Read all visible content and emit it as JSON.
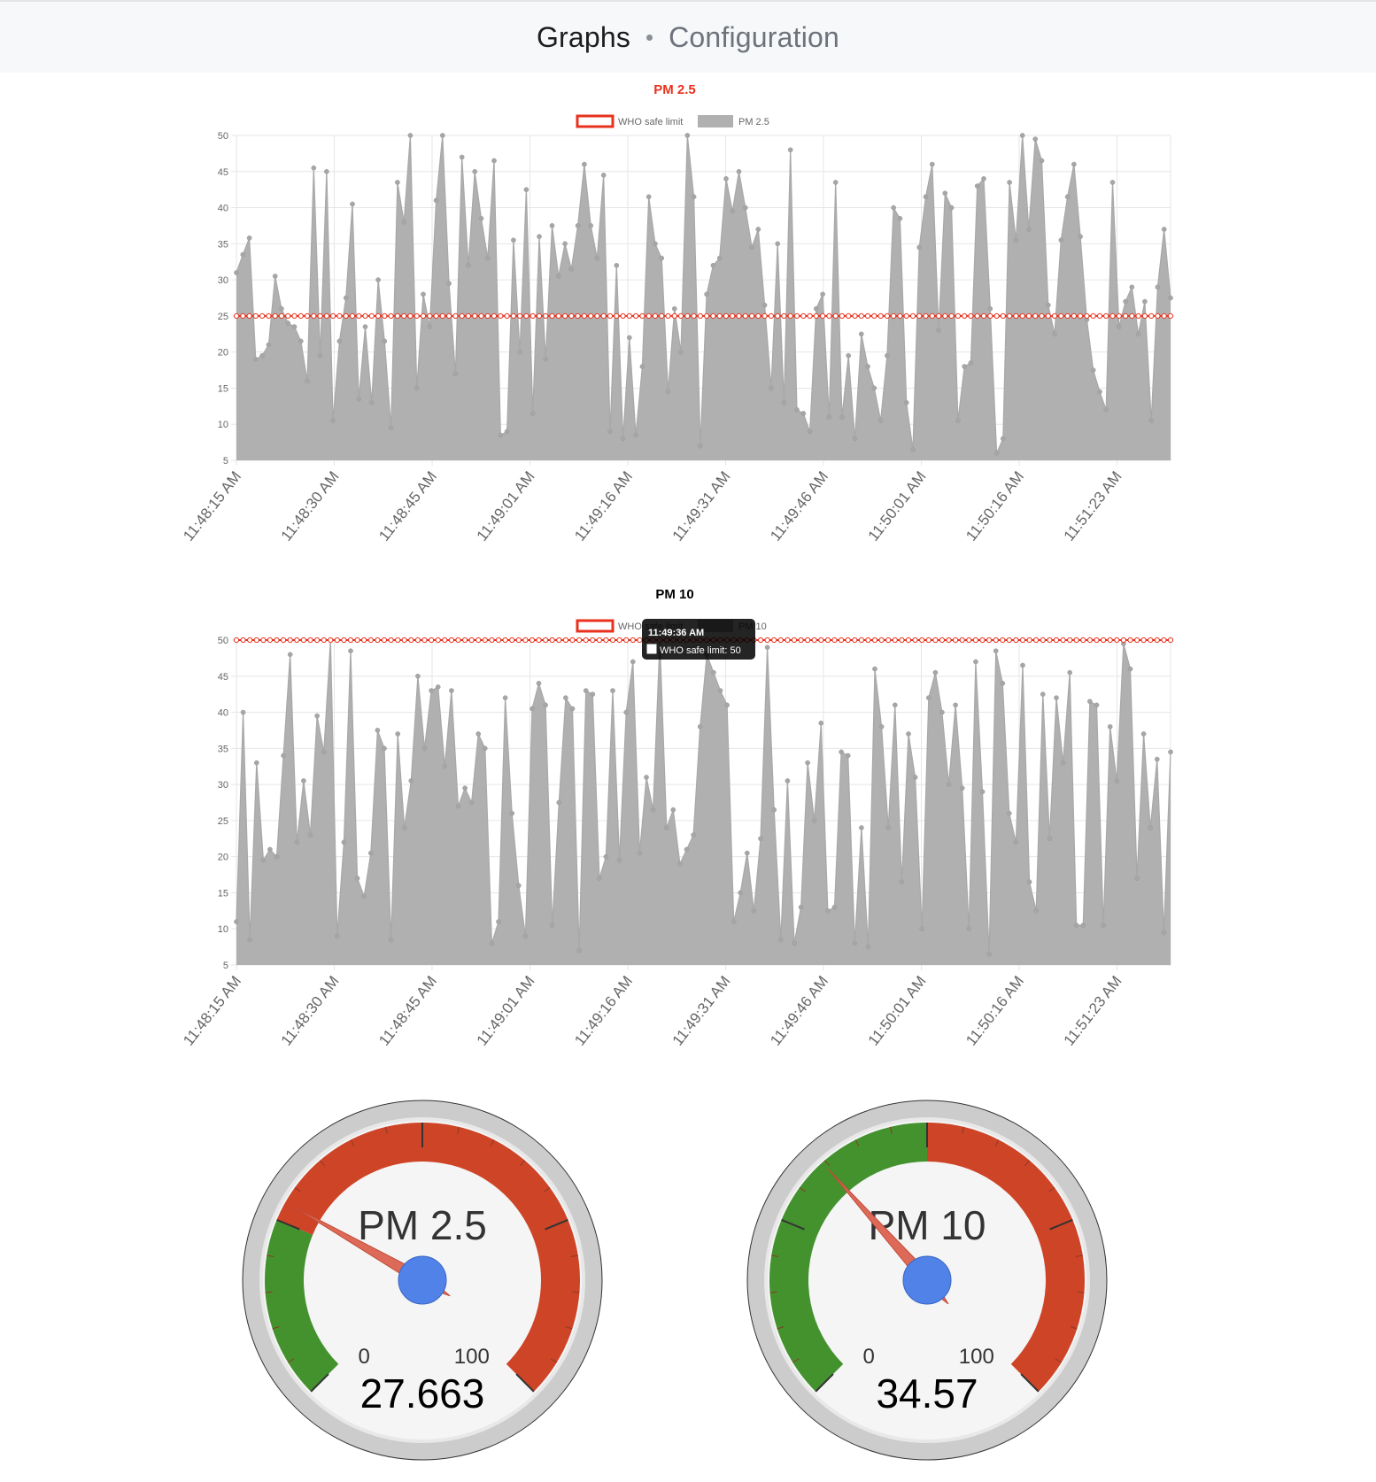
{
  "nav": {
    "graphs_label": "Graphs",
    "config_label": "Configuration"
  },
  "charts": [
    {
      "id": "pm25",
      "title": "PM 2.5",
      "title_color": "#e8321e",
      "legend": [
        {
          "label": "WHO safe limit",
          "style": "outline",
          "color": "#e8321e"
        },
        {
          "label": "PM 2.5",
          "style": "fill",
          "color": "#b0b0b0"
        }
      ],
      "x_tick_labels": [
        "11:48:15 AM",
        "11:48:30 AM",
        "11:48:45 AM",
        "11:49:01 AM",
        "11:49:16 AM",
        "11:49:31 AM",
        "11:49:46 AM",
        "11:50:01 AM",
        "11:50:16 AM",
        "11:51:23 AM"
      ],
      "y_tick_labels": [
        "50",
        "45",
        "40",
        "35",
        "30",
        "25",
        "20",
        "15",
        "10",
        "5"
      ]
    },
    {
      "id": "pm10",
      "title": "PM 10",
      "title_color": "#000000",
      "legend": [
        {
          "label": "WHO safe limit",
          "style": "outline",
          "color": "#e8321e"
        },
        {
          "label": "PM 10",
          "style": "fill",
          "color": "#b0b0b0"
        }
      ],
      "x_tick_labels": [
        "11:48:15 AM",
        "11:48:30 AM",
        "11:48:45 AM",
        "11:49:01 AM",
        "11:49:16 AM",
        "11:49:31 AM",
        "11:49:46 AM",
        "11:50:01 AM",
        "11:50:16 AM",
        "11:51:23 AM"
      ],
      "y_tick_labels": [
        "50",
        "45",
        "40",
        "35",
        "30",
        "25",
        "20",
        "15",
        "10",
        "5"
      ],
      "tooltip": {
        "title": "11:49:36 AM",
        "body": "WHO safe limit: 50"
      }
    }
  ],
  "chart_data": [
    {
      "type": "area",
      "title": "PM 2.5",
      "x_labels": [
        "11:48:15 AM",
        "11:48:30 AM",
        "11:48:45 AM",
        "11:49:01 AM",
        "11:49:16 AM",
        "11:49:31 AM",
        "11:49:46 AM",
        "11:50:01 AM",
        "11:50:16 AM",
        "11:51:23 AM"
      ],
      "ylim": [
        5,
        50
      ],
      "grid": true,
      "legend_position": "top",
      "series": [
        {
          "name": "WHO safe limit",
          "color": "#e8321e",
          "constant": 25
        },
        {
          "name": "PM 2.5",
          "color": "#b0b0b0",
          "values": [
            31,
            33.5,
            35.8,
            19,
            19.5,
            21,
            30.5,
            26,
            24,
            23.5,
            21.5,
            16,
            45.5,
            19.5,
            45,
            10.5,
            21.5,
            27.5,
            40.5,
            13.5,
            23.5,
            13,
            30,
            21.5,
            9.5,
            43.5,
            38,
            50,
            15,
            28,
            23.5,
            41,
            50,
            29.5,
            17,
            47,
            32,
            45,
            38.5,
            33,
            46.5,
            8.5,
            9,
            35.5,
            20,
            42.5,
            11.5,
            36,
            19,
            37.5,
            30.5,
            35,
            31.5,
            37.5,
            46,
            37.5,
            33,
            44.5,
            9,
            32,
            8,
            22,
            8.5,
            18,
            41.5,
            35,
            33,
            14.5,
            26,
            20,
            50,
            41.5,
            7,
            28,
            32,
            33,
            44,
            39.5,
            45,
            40,
            34.5,
            37,
            26.5,
            15,
            35,
            13,
            48,
            12,
            11.5,
            9,
            26,
            28,
            11,
            43.5,
            11,
            19.5,
            8,
            22.5,
            18,
            15,
            10.5,
            19.5,
            40,
            38.5,
            13,
            6.5,
            34.5,
            41.5,
            46,
            23,
            42,
            40,
            10.5,
            18,
            18.5,
            43,
            44,
            26,
            6,
            8,
            43.5,
            35.5,
            50,
            37,
            49.5,
            46.5,
            26.5,
            22.5,
            35.5,
            41.5,
            46,
            36,
            24.5,
            17.5,
            14.5,
            12,
            43.5,
            23.5,
            27,
            29,
            22.5,
            27,
            10.5,
            29,
            37,
            27.5
          ]
        }
      ]
    },
    {
      "type": "area",
      "title": "PM 10",
      "x_labels": [
        "11:48:15 AM",
        "11:48:30 AM",
        "11:48:45 AM",
        "11:49:01 AM",
        "11:49:16 AM",
        "11:49:31 AM",
        "11:49:46 AM",
        "11:50:01 AM",
        "11:50:16 AM",
        "11:51:23 AM"
      ],
      "ylim": [
        5,
        50
      ],
      "grid": true,
      "legend_position": "top",
      "series": [
        {
          "name": "WHO safe limit",
          "color": "#e8321e",
          "constant": 50
        },
        {
          "name": "PM 10",
          "color": "#b0b0b0",
          "values": [
            11,
            40,
            8.5,
            33,
            19.5,
            21,
            20,
            34,
            48,
            22,
            30.5,
            23,
            39.5,
            34.5,
            50,
            9,
            22,
            48.5,
            17,
            14.5,
            20.5,
            37.5,
            35,
            8.5,
            37,
            24,
            30.5,
            45,
            35,
            43,
            43.5,
            32.5,
            43,
            27,
            29.5,
            27.5,
            37,
            35,
            8,
            11,
            42,
            26,
            16,
            9,
            40.5,
            44,
            41,
            10.5,
            27.5,
            42,
            40.5,
            7,
            43,
            42.5,
            17,
            20,
            43,
            19.5,
            40,
            47,
            20.5,
            31,
            26.5,
            50,
            24,
            26.5,
            19,
            21,
            23,
            38,
            48,
            45.5,
            43,
            41,
            11,
            15,
            20.5,
            12.5,
            22.5,
            49,
            26.5,
            8.5,
            30.5,
            8,
            13,
            33,
            25,
            38.5,
            12.5,
            13,
            34.5,
            34,
            8,
            24,
            7.5,
            46,
            38,
            24,
            41,
            16.5,
            37,
            31,
            10,
            42,
            45.5,
            40,
            30,
            41,
            29.5,
            10,
            47,
            29,
            6.5,
            48.5,
            44,
            26,
            22,
            46.5,
            16.5,
            12.5,
            42.5,
            22.5,
            42,
            33,
            45.5,
            10.5,
            10.5,
            41.5,
            41,
            10.5,
            38,
            30.5,
            49.5,
            46,
            17,
            37,
            24,
            33.5,
            9.5,
            34.5
          ]
        }
      ]
    }
  ],
  "gauges": [
    {
      "label": "PM 2.5",
      "min_label": "0",
      "max_label": "100",
      "value_text": "27.663",
      "value": 27.663,
      "min": 0,
      "max": 100,
      "green_to": 25,
      "colors": {
        "green": "#43922e",
        "red": "#ce4427",
        "needle": "#dd6a58",
        "hub": "#5082e8"
      }
    },
    {
      "label": "PM 10",
      "min_label": "0",
      "max_label": "100",
      "value_text": "34.57",
      "value": 34.57,
      "min": 0,
      "max": 100,
      "green_to": 50,
      "colors": {
        "green": "#43922e",
        "red": "#ce4427",
        "needle": "#dd6a58",
        "hub": "#5082e8"
      }
    }
  ]
}
